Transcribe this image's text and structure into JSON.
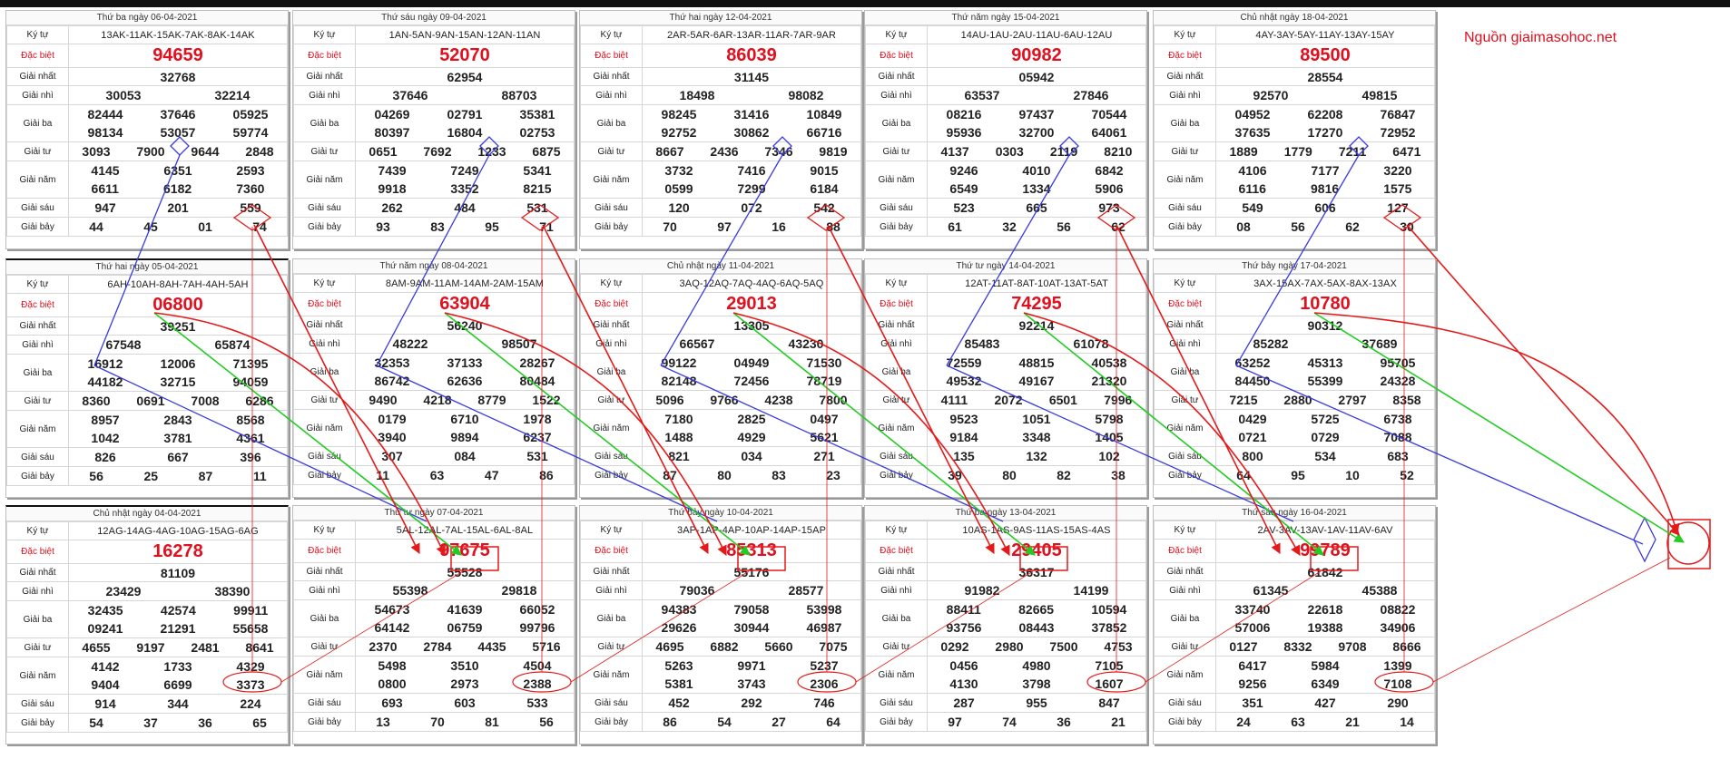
{
  "source_label": "Nguồn giaimasohoc.net",
  "labels": {
    "ky_tu": "Ký tự",
    "dac_biet": "Đặc biệt",
    "giai_nhat": "Giải nhất",
    "giai_nhi": "Giải nhì",
    "giai_ba": "Giải ba",
    "giai_tu": "Giải tư",
    "giai_nam": "Giải năm",
    "giai_sau": "Giải sáu",
    "giai_bay": "Giải bảy"
  },
  "boards": [
    {
      "title": "Thứ ba ngày 06-04-2021",
      "code": "13AK-11AK-15AK-7AK-8AK-14AK",
      "db": "94659",
      "g1": "32768",
      "g2": [
        "30053",
        "32214"
      ],
      "g3": [
        "82444",
        "37646",
        "05925",
        "98134",
        "53057",
        "59774"
      ],
      "g4": [
        "3093",
        "7900",
        "9644",
        "2848"
      ],
      "g5": [
        "4145",
        "6351",
        "2593",
        "6611",
        "6182",
        "7360"
      ],
      "g6": [
        "947",
        "201",
        "559"
      ],
      "g7": [
        "44",
        "45",
        "01",
        "74"
      ]
    },
    {
      "title": "Thứ sáu ngày 09-04-2021",
      "code": "1AN-5AN-9AN-15AN-12AN-11AN",
      "db": "52070",
      "g1": "62954",
      "g2": [
        "37646",
        "88703"
      ],
      "g3": [
        "04269",
        "02791",
        "35381",
        "80397",
        "16804",
        "02753"
      ],
      "g4": [
        "0651",
        "7692",
        "1233",
        "6875"
      ],
      "g5": [
        "7439",
        "7249",
        "5341",
        "9918",
        "3352",
        "8215"
      ],
      "g6": [
        "262",
        "484",
        "531"
      ],
      "g7": [
        "93",
        "83",
        "95",
        "71"
      ]
    },
    {
      "title": "Thứ hai ngày 12-04-2021",
      "code": "2AR-5AR-6AR-13AR-11AR-7AR-9AR",
      "db": "86039",
      "g1": "31145",
      "g2": [
        "18498",
        "98082"
      ],
      "g3": [
        "98245",
        "31416",
        "10849",
        "92752",
        "30862",
        "66716"
      ],
      "g4": [
        "8667",
        "2436",
        "7346",
        "9819"
      ],
      "g5": [
        "3732",
        "7416",
        "9015",
        "0599",
        "7299",
        "6184"
      ],
      "g6": [
        "120",
        "072",
        "542"
      ],
      "g7": [
        "70",
        "97",
        "16",
        "88"
      ]
    },
    {
      "title": "Thứ năm ngày 15-04-2021",
      "code": "14AU-1AU-2AU-11AU-6AU-12AU",
      "db": "90982",
      "g1": "05942",
      "g2": [
        "63537",
        "27846"
      ],
      "g3": [
        "08216",
        "97437",
        "70544",
        "95936",
        "32700",
        "64061"
      ],
      "g4": [
        "4137",
        "0303",
        "2119",
        "8210"
      ],
      "g5": [
        "9246",
        "4010",
        "6842",
        "6549",
        "1334",
        "5906"
      ],
      "g6": [
        "523",
        "665",
        "973"
      ],
      "g7": [
        "61",
        "32",
        "56",
        "62"
      ]
    },
    {
      "title": "Chủ nhật ngày 18-04-2021",
      "code": "4AY-3AY-5AY-11AY-13AY-15AY",
      "db": "89500",
      "g1": "28554",
      "g2": [
        "92570",
        "49815"
      ],
      "g3": [
        "04952",
        "62208",
        "76847",
        "37635",
        "17270",
        "72952"
      ],
      "g4": [
        "1889",
        "1779",
        "7211",
        "6471"
      ],
      "g5": [
        "4106",
        "7177",
        "3220",
        "6116",
        "9816",
        "1575"
      ],
      "g6": [
        "549",
        "606",
        "127"
      ],
      "g7": [
        "08",
        "56",
        "62",
        "30"
      ]
    },
    {
      "title": "Thứ hai ngày 05-04-2021",
      "code": "6AH-10AH-8AH-7AH-4AH-5AH",
      "db": "06800",
      "g1": "39251",
      "g2": [
        "67548",
        "65874"
      ],
      "g3": [
        "16912",
        "12006",
        "71395",
        "44182",
        "32715",
        "94059"
      ],
      "g4": [
        "8360",
        "0691",
        "7008",
        "6286"
      ],
      "g5": [
        "8957",
        "2843",
        "8568",
        "1042",
        "3781",
        "4361"
      ],
      "g6": [
        "826",
        "667",
        "396"
      ],
      "g7": [
        "56",
        "25",
        "87",
        "11"
      ]
    },
    {
      "title": "Thứ năm ngày 08-04-2021",
      "code": "8AM-9AM-11AM-14AM-2AM-15AM",
      "db": "63904",
      "g1": "56240",
      "g2": [
        "48222",
        "98507"
      ],
      "g3": [
        "32353",
        "37133",
        "28267",
        "86742",
        "62636",
        "80484"
      ],
      "g4": [
        "9490",
        "4218",
        "8779",
        "1522"
      ],
      "g5": [
        "0179",
        "6710",
        "1978",
        "3940",
        "9894",
        "6237"
      ],
      "g6": [
        "307",
        "084",
        "531"
      ],
      "g7": [
        "11",
        "63",
        "47",
        "86"
      ]
    },
    {
      "title": "Chủ nhật ngày 11-04-2021",
      "code": "3AQ-12AQ-7AQ-4AQ-6AQ-5AQ",
      "db": "29013",
      "g1": "13305",
      "g2": [
        "66567",
        "43230"
      ],
      "g3": [
        "99122",
        "04949",
        "71530",
        "82148",
        "72456",
        "78719"
      ],
      "g4": [
        "5096",
        "9766",
        "4238",
        "7800"
      ],
      "g5": [
        "7180",
        "2825",
        "0497",
        "1488",
        "4929",
        "5621"
      ],
      "g6": [
        "821",
        "034",
        "271"
      ],
      "g7": [
        "87",
        "80",
        "83",
        "23"
      ]
    },
    {
      "title": "Thứ tư ngày 14-04-2021",
      "code": "12AT-11AT-8AT-10AT-13AT-5AT",
      "db": "74295",
      "g1": "92214",
      "g2": [
        "85483",
        "61078"
      ],
      "g3": [
        "72559",
        "48815",
        "40538",
        "49532",
        "49167",
        "21320"
      ],
      "g4": [
        "4111",
        "2072",
        "6501",
        "7996"
      ],
      "g5": [
        "9523",
        "1051",
        "5798",
        "9184",
        "3348",
        "1405"
      ],
      "g6": [
        "135",
        "132",
        "102"
      ],
      "g7": [
        "39",
        "80",
        "82",
        "38"
      ]
    },
    {
      "title": "Thứ bảy ngày 17-04-2021",
      "code": "3AX-15AX-7AX-5AX-8AX-13AX",
      "db": "10780",
      "g1": "90312",
      "g2": [
        "85282",
        "37689"
      ],
      "g3": [
        "63252",
        "45313",
        "95705",
        "84450",
        "55399",
        "24328"
      ],
      "g4": [
        "7215",
        "2880",
        "2797",
        "8358"
      ],
      "g5": [
        "0429",
        "5725",
        "6738",
        "0721",
        "0729",
        "7088"
      ],
      "g6": [
        "800",
        "534",
        "683"
      ],
      "g7": [
        "64",
        "95",
        "10",
        "52"
      ]
    },
    {
      "title": "Chủ nhật ngày 04-04-2021",
      "code": "12AG-14AG-4AG-10AG-15AG-6AG",
      "db": "16278",
      "g1": "81109",
      "g2": [
        "23429",
        "38390"
      ],
      "g3": [
        "32435",
        "42574",
        "99911",
        "09241",
        "21291",
        "55658"
      ],
      "g4": [
        "4655",
        "9197",
        "2481",
        "8641"
      ],
      "g5": [
        "4142",
        "1733",
        "4329",
        "9404",
        "6699",
        "3373"
      ],
      "g6": [
        "914",
        "344",
        "224"
      ],
      "g7": [
        "54",
        "37",
        "36",
        "65"
      ]
    },
    {
      "title": "Thứ tư ngày 07-04-2021",
      "code": "5AL-12AL-7AL-15AL-6AL-8AL",
      "db": "97675",
      "g1": "55528",
      "g2": [
        "55398",
        "29818"
      ],
      "g3": [
        "54673",
        "41639",
        "66052",
        "64142",
        "06759",
        "99796"
      ],
      "g4": [
        "2370",
        "2784",
        "4435",
        "5716"
      ],
      "g5": [
        "5498",
        "3510",
        "4504",
        "0800",
        "2973",
        "2388"
      ],
      "g6": [
        "693",
        "603",
        "533"
      ],
      "g7": [
        "13",
        "70",
        "81",
        "56"
      ]
    },
    {
      "title": "Thứ bảy ngày 10-04-2021",
      "code": "3AP-1AP-4AP-10AP-14AP-15AP",
      "db": "85313",
      "g1": "55176",
      "g2": [
        "79036",
        "28577"
      ],
      "g3": [
        "94383",
        "79058",
        "53998",
        "29626",
        "30944",
        "46987"
      ],
      "g4": [
        "4695",
        "6882",
        "5660",
        "7075"
      ],
      "g5": [
        "5263",
        "9971",
        "5237",
        "5381",
        "3743",
        "2306"
      ],
      "g6": [
        "452",
        "292",
        "746"
      ],
      "g7": [
        "86",
        "54",
        "27",
        "64"
      ]
    },
    {
      "title": "Thứ ba ngày 13-04-2021",
      "code": "10AS-1AS-9AS-11AS-15AS-4AS",
      "db": "29405",
      "g1": "36317",
      "g2": [
        "91982",
        "14199"
      ],
      "g3": [
        "88411",
        "82665",
        "10594",
        "93756",
        "08443",
        "37852"
      ],
      "g4": [
        "0292",
        "2980",
        "7500",
        "4753"
      ],
      "g5": [
        "0456",
        "4980",
        "7105",
        "4130",
        "3798",
        "1607"
      ],
      "g6": [
        "287",
        "955",
        "847"
      ],
      "g7": [
        "97",
        "74",
        "36",
        "21"
      ]
    },
    {
      "title": "Thứ sáu ngày 16-04-2021",
      "code": "2AV-3AV-13AV-1AV-11AV-6AV",
      "db": "99789",
      "g1": "61842",
      "g2": [
        "61345",
        "45388"
      ],
      "g3": [
        "33740",
        "22618",
        "08822",
        "57006",
        "19388",
        "34906"
      ],
      "g4": [
        "0127",
        "8332",
        "9708",
        "8666"
      ],
      "g5": [
        "6417",
        "5984",
        "1399",
        "9256",
        "6349",
        "7108"
      ],
      "g6": [
        "351",
        "427",
        "290"
      ],
      "g7": [
        "24",
        "63",
        "21",
        "14"
      ]
    }
  ]
}
